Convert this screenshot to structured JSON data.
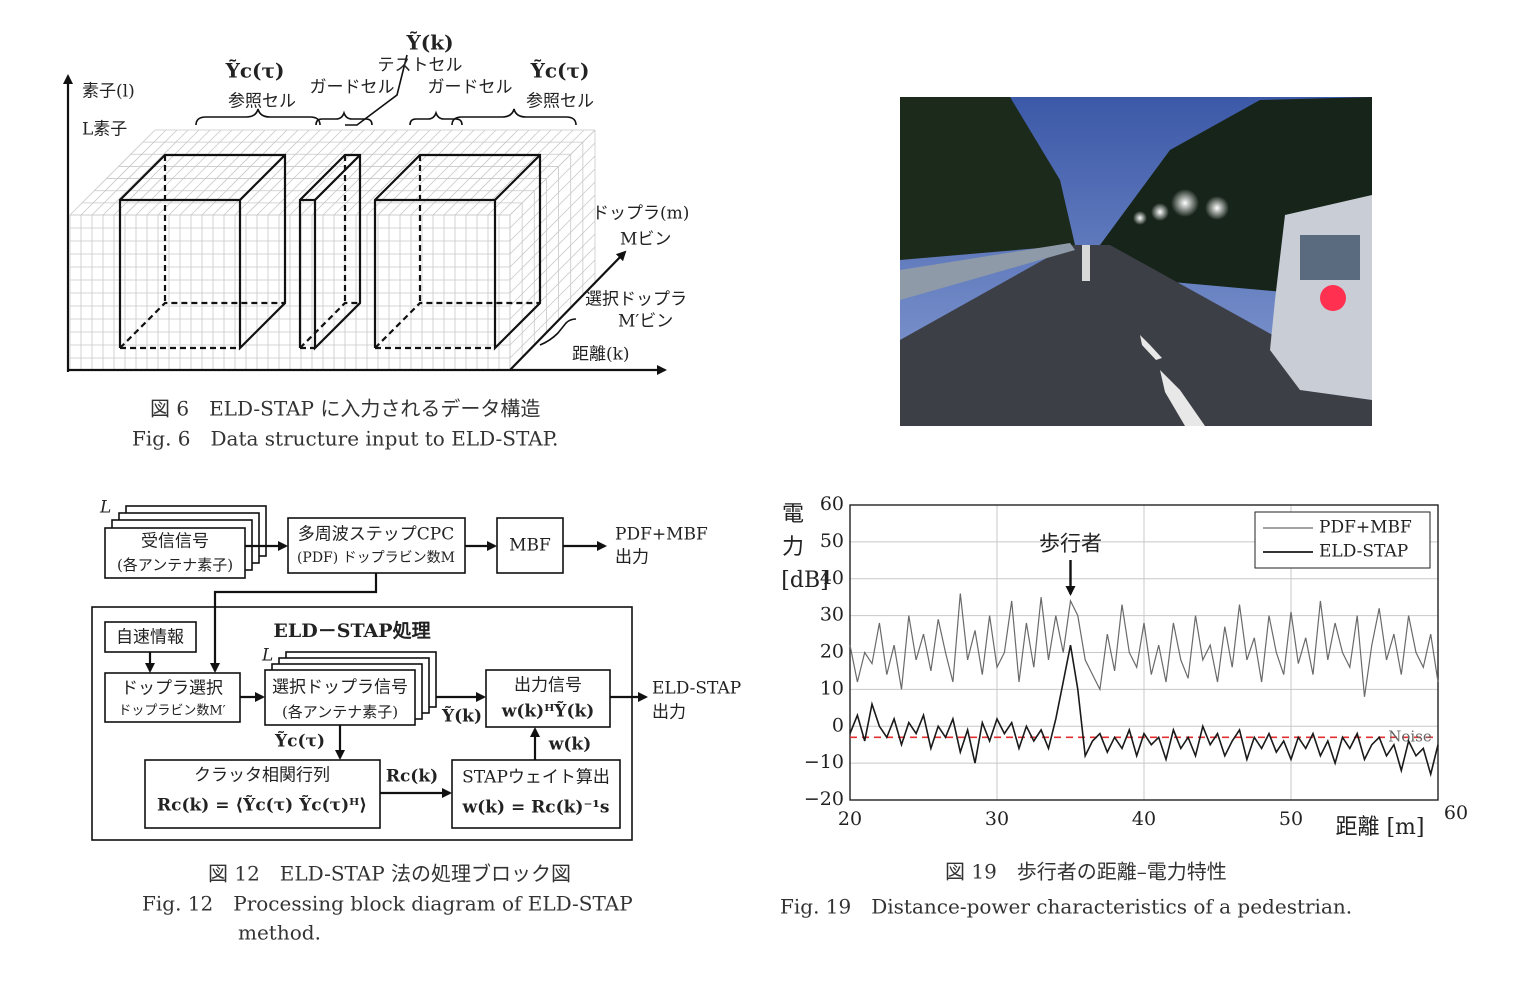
{
  "fig6": {
    "labels": [
      "素子(l)",
      "L素子",
      "Ỹc(τ)",
      "参照セル",
      "ガードセル",
      "Ỹ(k)",
      "テストセル",
      "ガードセル",
      "Ỹc(τ)",
      "参照セル",
      "ドップラ(m)",
      "Mビン",
      "選択ドップラ",
      "M′ビン",
      "距離(k)"
    ],
    "caption": [
      "図 6　ELD-STAP に入力されるデータ構造",
      "Fig. 6　Data structure input to ELD-STAP."
    ]
  },
  "fig12": {
    "labels": [
      "L",
      "受信信号",
      "(各アンテナ素子)",
      "多周波ステップCPC",
      "(PDF) ドップラビン数M",
      "MBF",
      "PDF+MBF",
      "出力",
      "ELD－STAP処理",
      "自速情報",
      "ドップラ選択",
      "ドップラビン数M′",
      "L",
      "選択ドップラ信号",
      "(各アンテナ素子)",
      "Ỹ(k)",
      "出力信号",
      "w(k)ᴴỸ(k)",
      "ELD-STAP",
      "出力",
      "Ỹc(τ)",
      "w(k)",
      "クラッタ相関行列",
      "Rc(k) = ⟨Ỹc(τ) Ỹc(τ)ᴴ⟩",
      "Rc(k)",
      "STAPウェイト算出",
      "w(k) = Rc(k)⁻¹s"
    ],
    "caption": [
      "図 12　ELD-STAP 法の処理ブロック図",
      "Fig. 12　Processing block diagram of ELD-STAP",
      "method."
    ]
  },
  "chart_data": {
    "type": "line",
    "ylabel": [
      "電",
      "力",
      "[dB]"
    ],
    "xlabel": "距離 [m]",
    "xlim": [
      20,
      60
    ],
    "xticks": [
      20,
      30,
      40,
      50,
      60
    ],
    "ylim": [
      -20,
      60
    ],
    "yticks": [
      {
        "value": -20,
        "label": "−20"
      },
      {
        "value": -10,
        "label": "−10"
      },
      0,
      10,
      20,
      30,
      40,
      50,
      60
    ],
    "grid": true,
    "legend": "upper right",
    "annotation": {
      "text": "歩行者",
      "x": 35
    },
    "noise": {
      "value": -3,
      "label": "Noise",
      "color": "#e03030"
    },
    "x": [
      20,
      20.5,
      21,
      21.5,
      22,
      22.5,
      23,
      23.5,
      24,
      24.5,
      25,
      25.5,
      26,
      26.5,
      27,
      27.5,
      28,
      28.5,
      29,
      29.5,
      30,
      30.5,
      31,
      31.5,
      32,
      32.5,
      33,
      33.5,
      34,
      34.5,
      35,
      35.5,
      36,
      36.5,
      37,
      37.5,
      38,
      38.5,
      39,
      39.5,
      40,
      40.5,
      41,
      41.5,
      42,
      42.5,
      43,
      43.5,
      44,
      44.5,
      45,
      45.5,
      46,
      46.5,
      47,
      47.5,
      48,
      48.5,
      49,
      49.5,
      50,
      50.5,
      51,
      51.5,
      52,
      52.5,
      53,
      53.5,
      54,
      54.5,
      55,
      55.5,
      56,
      56.5,
      57,
      57.5,
      58,
      58.5,
      59,
      59.5,
      60
    ],
    "series": [
      {
        "name": "PDF+MBF",
        "color": "#6a6a6a",
        "values": [
          22,
          12,
          20,
          17,
          28,
          14,
          22,
          10,
          30,
          18,
          25,
          15,
          29,
          20,
          12,
          36,
          18,
          26,
          14,
          30,
          16,
          20,
          34,
          12,
          28,
          16,
          35,
          18,
          30,
          20,
          34,
          30,
          18,
          14,
          10,
          25,
          15,
          33,
          20,
          16,
          28,
          14,
          22,
          12,
          28,
          18,
          13,
          30,
          18,
          22,
          12,
          27,
          16,
          33,
          18,
          24,
          12,
          30,
          20,
          14,
          31,
          17,
          24,
          14,
          34,
          18,
          28,
          20,
          16,
          30,
          8,
          22,
          32,
          18,
          25,
          14,
          30,
          20,
          16,
          25,
          12
        ]
      },
      {
        "name": "ELD-STAP",
        "color": "#1a1a1a",
        "values": [
          -2,
          3,
          -4,
          6,
          0,
          -3,
          2,
          -5,
          1,
          -2,
          3,
          -6,
          0,
          -3,
          2,
          -7,
          -1,
          -10,
          1,
          -4,
          2,
          -2,
          1,
          -6,
          0,
          -4,
          -1,
          -6,
          2,
          12,
          22,
          10,
          -8,
          -4,
          -2,
          -7,
          -3,
          -6,
          -1,
          -8,
          -2,
          -5,
          -3,
          -9,
          -1,
          -6,
          -3,
          -8,
          0,
          -5,
          -2,
          -8,
          -4,
          -1,
          -9,
          -3,
          -6,
          -2,
          -7,
          -4,
          -9,
          -3,
          -6,
          -2,
          -8,
          -4,
          -10,
          -3,
          -6,
          -2,
          -9,
          -5,
          -3,
          -8,
          -5,
          -12,
          -4,
          -8,
          -6,
          -13,
          -5
        ]
      }
    ],
    "caption": [
      "図 19　歩行者の距離–電力特性",
      "Fig. 19　Distance-power characteristics of a pedestrian."
    ]
  }
}
